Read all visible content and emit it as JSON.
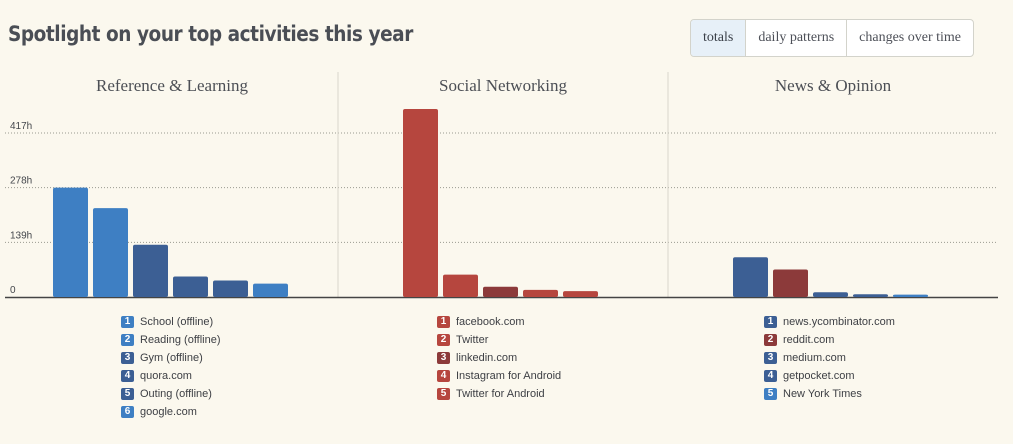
{
  "header": {
    "title": "Spotlight on your top activities this year"
  },
  "tabs": [
    {
      "label": "totals",
      "active": true
    },
    {
      "label": "daily patterns",
      "active": false
    },
    {
      "label": "changes over time",
      "active": false
    }
  ],
  "chart_data": {
    "type": "bar",
    "y_ticks": [
      {
        "label": "0",
        "value": 0
      },
      {
        "label": "139h",
        "value": 139
      },
      {
        "label": "278h",
        "value": 278
      },
      {
        "label": "417h",
        "value": 417
      }
    ],
    "ylim": [
      0,
      417
    ],
    "grid": true,
    "panels": [
      {
        "title": "Reference & Learning",
        "items": [
          {
            "rank": "1",
            "name": "School (offline)",
            "value": 278,
            "color": "#3e7fc3"
          },
          {
            "rank": "2",
            "name": "Reading (offline)",
            "value": 226,
            "color": "#3e7fc3"
          },
          {
            "rank": "3",
            "name": "Gym (offline)",
            "value": 133,
            "color": "#3c5f94"
          },
          {
            "rank": "4",
            "name": "quora.com",
            "value": 52,
            "color": "#3c5f94"
          },
          {
            "rank": "5",
            "name": "Outing (offline)",
            "value": 42,
            "color": "#3c5f94"
          },
          {
            "rank": "6",
            "name": "google.com",
            "value": 34,
            "color": "#3e7fc3"
          }
        ]
      },
      {
        "title": "Social Networking",
        "items": [
          {
            "rank": "1",
            "name": "facebook.com",
            "value": 478,
            "color": "#b6463e"
          },
          {
            "rank": "2",
            "name": "Twitter",
            "value": 57,
            "color": "#b6463e"
          },
          {
            "rank": "3",
            "name": "linkedin.com",
            "value": 26,
            "color": "#8c3a3a"
          },
          {
            "rank": "4",
            "name": "Instagram for Android",
            "value": 18,
            "color": "#b6463e"
          },
          {
            "rank": "5",
            "name": "Twitter for Android",
            "value": 15,
            "color": "#b6463e"
          }
        ]
      },
      {
        "title": "News & Opinion",
        "items": [
          {
            "rank": "1",
            "name": "news.ycombinator.com",
            "value": 101,
            "color": "#3c5f94"
          },
          {
            "rank": "2",
            "name": "reddit.com",
            "value": 70,
            "color": "#8c3a3a"
          },
          {
            "rank": "3",
            "name": "medium.com",
            "value": 12,
            "color": "#3c5f94"
          },
          {
            "rank": "4",
            "name": "getpocket.com",
            "value": 7,
            "color": "#3c5f94"
          },
          {
            "rank": "5",
            "name": "New York Times",
            "value": 6,
            "color": "#3e7fc3"
          }
        ]
      }
    ]
  }
}
